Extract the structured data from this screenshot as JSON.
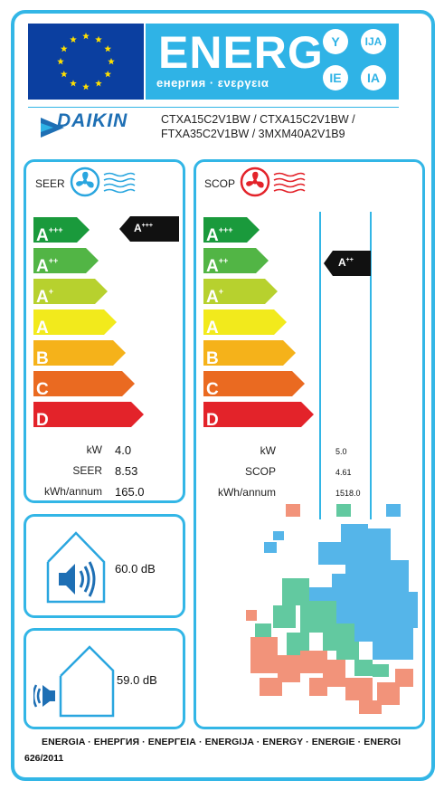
{
  "header": {
    "energ_word": "ENERG",
    "energ_subtitle": "енергия · ενεργεια",
    "lang_bubbles": [
      "Y",
      "IJA",
      "IE",
      "IA"
    ],
    "brand": "DAIKIN",
    "models_line1": "CTXA15C2V1BW / CTXA15C2V1BW /",
    "models_line2": "FTXA35C2V1BW / 3MXM40A2V1B9"
  },
  "scale": {
    "classes": [
      {
        "letter": "A",
        "plus": "+++",
        "color": "#1a9a3c"
      },
      {
        "letter": "A",
        "plus": "++",
        "color": "#52b545"
      },
      {
        "letter": "A",
        "plus": "+",
        "color": "#b7d12e"
      },
      {
        "letter": "A",
        "plus": "",
        "color": "#f2ea1c"
      },
      {
        "letter": "B",
        "plus": "",
        "color": "#f5b21a"
      },
      {
        "letter": "C",
        "plus": "",
        "color": "#ea6a21"
      },
      {
        "letter": "D",
        "plus": "",
        "color": "#e3232a"
      }
    ]
  },
  "seer": {
    "title": "SEER",
    "rating_letter": "A",
    "rating_plus": "+++",
    "rows": [
      {
        "label": "kW",
        "value": "4.0"
      },
      {
        "label": "SEER",
        "value": "8.53"
      },
      {
        "label": "kWh/annum",
        "value": "165.0"
      }
    ]
  },
  "scop": {
    "title": "SCOP",
    "rating_letter": "A",
    "rating_plus": "++",
    "rows": [
      {
        "label": "kW",
        "value": "5.0"
      },
      {
        "label": "SCOP",
        "value": "4.61"
      },
      {
        "label": "kWh/annum",
        "value": "1518.0"
      }
    ],
    "zone_colors": [
      "#f2937a",
      "#62c9a0",
      "#55b5e9"
    ]
  },
  "noise": {
    "indoor_value": "60.0 dB",
    "outdoor_value": "59.0 dB"
  },
  "footer": {
    "languages": "ENERGIA · ЕНЕРГИЯ · ΕΝΕΡΓΕΙΑ · ENERGIJA · ENERGY · ENERGIE · ENERGI",
    "regulation": "626/2011"
  },
  "colors": {
    "frame": "#33b6e6",
    "eu_blue": "#0b3fa0",
    "eu_star": "#ffe000",
    "energ_blue": "#2fb3e6",
    "daikin_blue": "#1e6fb4",
    "fan_cool": "#2aa6df",
    "fan_heat": "#e3232a"
  }
}
